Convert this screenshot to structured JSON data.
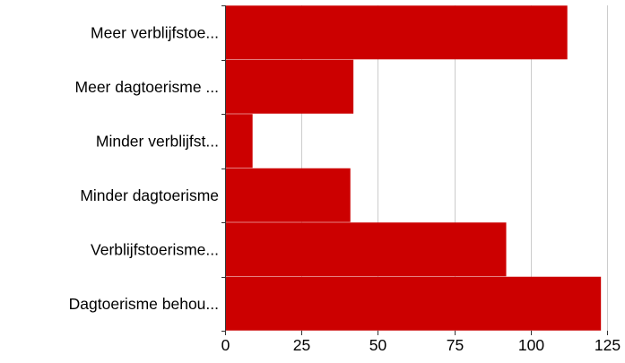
{
  "colors": {
    "bar": "#cc0000",
    "grid": "#cccccc",
    "axis": "#333333",
    "background": "#ffffff"
  },
  "chart_data": {
    "type": "bar",
    "orientation": "horizontal",
    "title": "",
    "xlabel": "",
    "ylabel": "",
    "categories": [
      "Meer verblijfstoe...",
      "Meer dagtoerisme ...",
      "Minder verblijfst...",
      "Minder dagtoerisme",
      "Verblijfstoerisme...",
      "Dagtoerisme behou..."
    ],
    "values": [
      112,
      42,
      9,
      41,
      92,
      123
    ],
    "xlim": [
      0,
      125
    ],
    "xticks": [
      0,
      25,
      50,
      75,
      100,
      125
    ],
    "grid": true,
    "legend": false
  }
}
